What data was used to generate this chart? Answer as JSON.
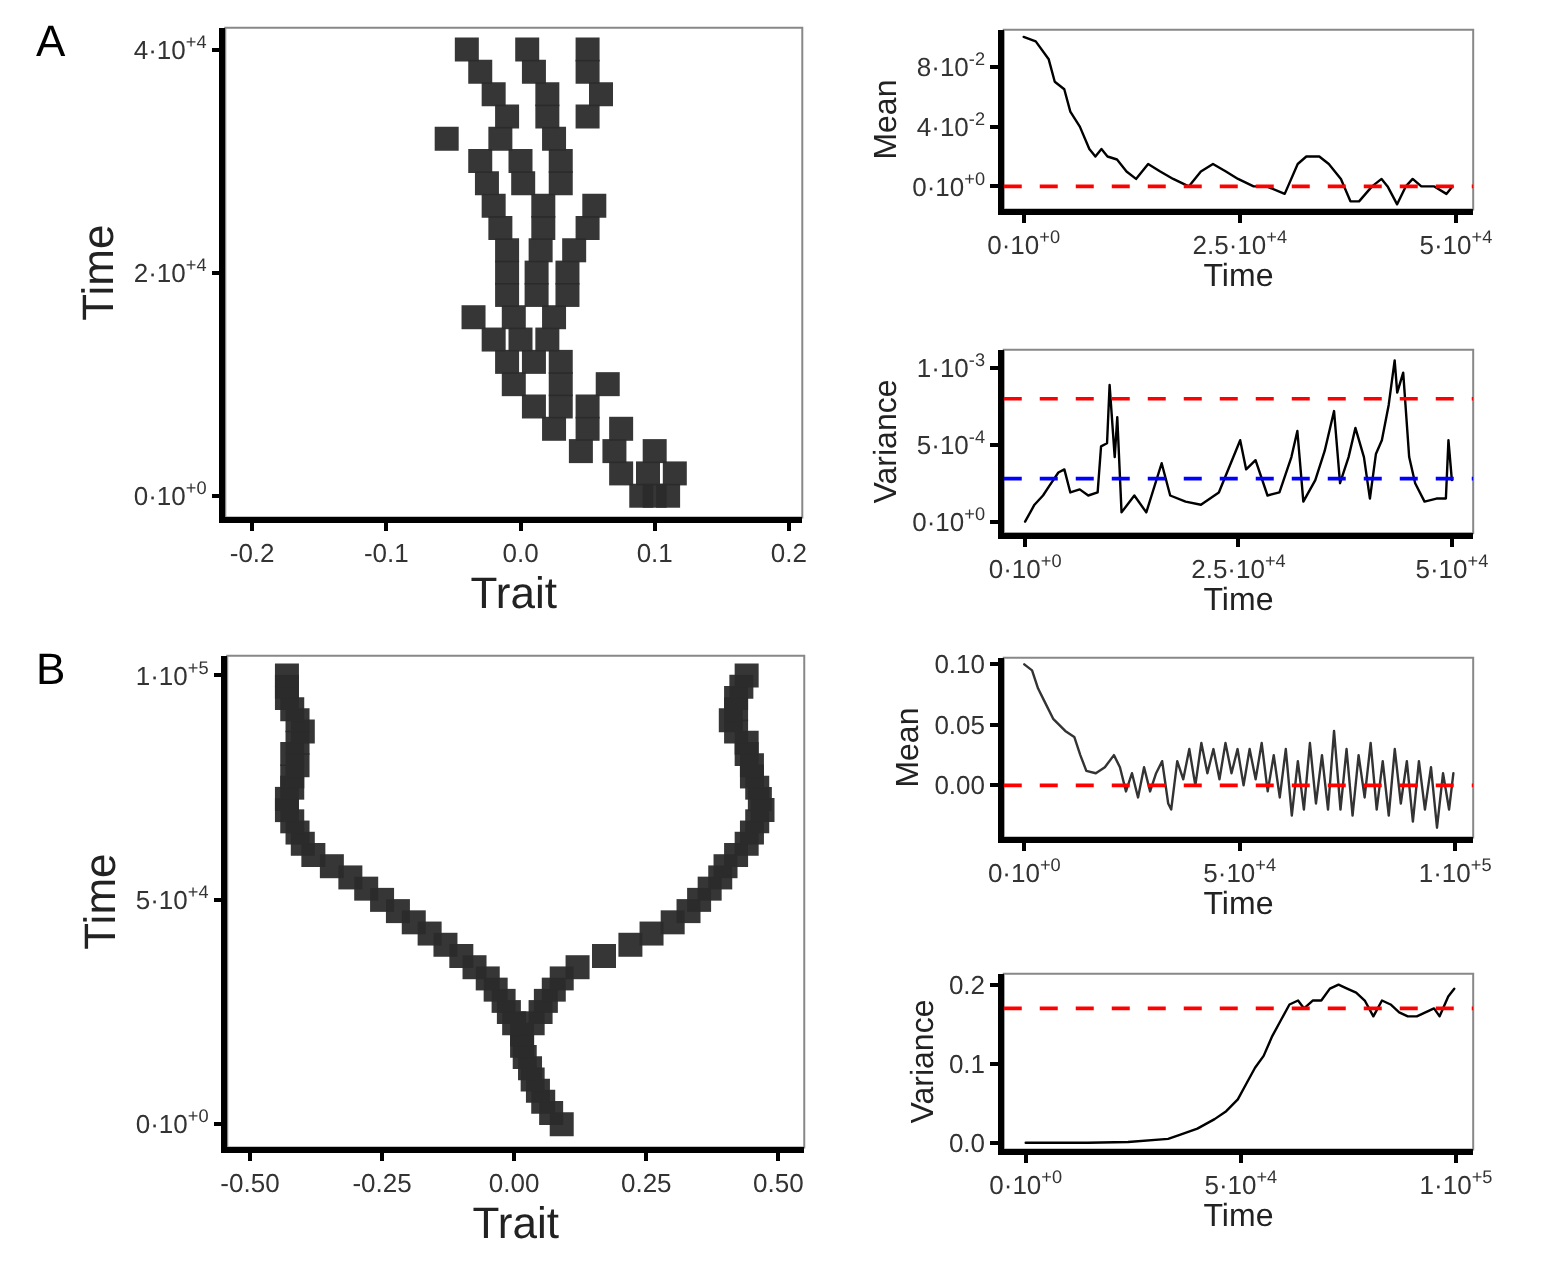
{
  "chart_data": [
    {
      "type": "scatter",
      "xlabel": "Trait",
      "ylabel": "Time",
      "annotations": [
        "A"
      ],
      "marker": "square",
      "xlim": [
        -0.22,
        0.21
      ],
      "ylim": [
        -1950,
        41950
      ],
      "xticks": [
        -0.2,
        -0.1,
        {
          "value": 0,
          "label": "0.0"
        },
        0.1,
        0.2
      ],
      "yticks": [
        {
          "value": 0,
          "label": "0·10$^{+0}$"
        },
        {
          "value": 20000,
          "label": "2·10$^{+4}$"
        },
        {
          "value": 40000,
          "label": "4·10$^{+4}$"
        }
      ],
      "series": [
        {
          "color": "#2b2b2b",
          "x": [
            0.09,
            0.1,
            0.11,
            0.075,
            0.095,
            0.115,
            0.045,
            0.07,
            0.1,
            0.025,
            0.05,
            0.075,
            0.01,
            0.03,
            0.05,
            -0.005,
            0.03,
            0.065,
            -0.01,
            0.01,
            0.03,
            -0.02,
            0,
            0.02,
            -0.035,
            -0.005,
            0.025,
            -0.01,
            0.012,
            0.035,
            -0.01,
            0.012,
            0.035,
            -0.01,
            0.015,
            0.04,
            -0.015,
            0.017,
            0.05,
            -0.02,
            0.017,
            0.055,
            -0.025,
            0.002,
            0.03,
            -0.03,
            0,
            0.03,
            -0.055,
            -0.015,
            0.025,
            -0.01,
            0.02,
            0.05,
            -0.02,
            0.02,
            0.06,
            -0.03,
            0.01,
            0.05,
            -0.04,
            0.005,
            0.05
          ],
          "values": [
            0,
            0,
            0,
            2000,
            2000,
            2000,
            4000,
            4000,
            4000,
            6000,
            6000,
            6000,
            8000,
            8000,
            8000,
            10000,
            10000,
            10000,
            12000,
            12000,
            12000,
            14000,
            14000,
            14000,
            16000,
            16000,
            16000,
            18000,
            18000,
            18000,
            20000,
            20000,
            20000,
            22000,
            22000,
            22000,
            24000,
            24000,
            24000,
            26000,
            26000,
            26000,
            28000,
            28000,
            28000,
            30000,
            30000,
            30000,
            32000,
            32000,
            32000,
            34000,
            34000,
            34000,
            36000,
            36000,
            36000,
            38000,
            38000,
            38000,
            40000,
            40000,
            40000
          ]
        }
      ]
    },
    {
      "type": "line",
      "xlabel": "Time",
      "ylabel": "Mean",
      "marker": "none",
      "line_style": "solid",
      "xlim": [
        -2300,
        52000
      ],
      "ylim": [
        -0.0154,
        0.1048
      ],
      "xticks": [
        {
          "value": 0,
          "label": "0·10$^{+0}$"
        },
        {
          "value": 25000,
          "label": "2.5·10$^{+4}$"
        },
        {
          "value": 50000,
          "label": "5·10$^{+4}$"
        }
      ],
      "yticks": [
        {
          "value": 0,
          "label": "0·10$^{+0}$"
        },
        {
          "value": 0.04,
          "label": "4·10$^{-2}$"
        },
        {
          "value": 0.08,
          "label": "8·10$^{-2}$"
        }
      ],
      "ref_lines": [
        {
          "axis": "y",
          "value": 0,
          "color": "#ff0000",
          "line_style": "dashed"
        }
      ],
      "series": [
        {
          "color": "#000000",
          "x": [
            0,
            1400,
            2900,
            3600,
            4700,
            5400,
            6500,
            7600,
            8300,
            9000,
            9700,
            10800,
            11900,
            13000,
            14400,
            15800,
            17300,
            19100,
            20500,
            21900,
            23400,
            24800,
            26600,
            28100,
            30200,
            31700,
            32700,
            34200,
            35300,
            36700,
            37800,
            38800,
            40300,
            41400,
            42100,
            43200,
            44200,
            45000,
            46000,
            47500,
            48900,
            49600
          ],
          "values": [
            0.1,
            0.097,
            0.085,
            0.07,
            0.065,
            0.05,
            0.04,
            0.025,
            0.02,
            0.025,
            0.02,
            0.018,
            0.01,
            0.005,
            0.015,
            0.01,
            0.005,
            0.0,
            0.01,
            0.015,
            0.01,
            0.005,
            0.0,
            0.0,
            -0.005,
            0.015,
            0.02,
            0.02,
            0.015,
            0.005,
            -0.01,
            -0.01,
            0.0,
            0.005,
            0.0,
            -0.012,
            0.0,
            0.005,
            0.0,
            0.0,
            -0.005,
            0.0
          ]
        }
      ]
    },
    {
      "type": "line",
      "xlabel": "Time",
      "ylabel": "Variance",
      "marker": "none",
      "line_style": "solid",
      "xlim": [
        -2500,
        52500
      ],
      "ylim": [
        -7.6e-05,
        0.00112
      ],
      "xticks": [
        {
          "value": 0,
          "label": "0·10$^{+0}$"
        },
        {
          "value": 25000,
          "label": "2.5·10$^{+4}$"
        },
        {
          "value": 50000,
          "label": "5·10$^{+4}$"
        }
      ],
      "yticks": [
        {
          "value": 0,
          "label": "0·10$^{+0}$"
        },
        {
          "value": 0.0005,
          "label": "5·10$^{-4}$"
        },
        {
          "value": 0.001,
          "label": "1·10$^{-3}$"
        }
      ],
      "ref_lines": [
        {
          "axis": "y",
          "value": 0.0008,
          "color": "#ff0000",
          "line_style": "dashed"
        },
        {
          "axis": "y",
          "value": 0.00028,
          "color": "#0000ff",
          "line_style": "dashed"
        }
      ],
      "series": [
        {
          "color": "#000000",
          "x": [
            0,
            1100,
            2100,
            2800,
            3900,
            4600,
            5300,
            6400,
            7400,
            8500,
            8900,
            9600,
            9900,
            10500,
            10800,
            11300,
            12800,
            14200,
            16000,
            17000,
            18800,
            20600,
            22700,
            24100,
            25200,
            25900,
            27000,
            28400,
            29800,
            31200,
            31900,
            32600,
            34000,
            35100,
            36200,
            36900,
            37900,
            38700,
            39700,
            40400,
            41100,
            41800,
            42600,
            43300,
            43600,
            44300,
            45000,
            45700,
            46800,
            48200,
            49300,
            49600,
            50000
          ],
          "values": [
            0,
            0.00011,
            0.00017,
            0.00023,
            0.00032,
            0.00034,
            0.00019,
            0.00021,
            0.00017,
            0.00019,
            0.00049,
            0.00051,
            0.00089,
            0.00042,
            0.00068,
            6e-05,
            0.00017,
            6e-05,
            0.00038,
            0.00017,
            0.00013,
            0.00011,
            0.00019,
            0.00038,
            0.00053,
            0.00034,
            0.0004,
            0.00017,
            0.00019,
            0.00042,
            0.00059,
            0.00013,
            0.00027,
            0.00046,
            0.00072,
            0.00025,
            0.00042,
            0.00061,
            0.00042,
            0.00015,
            0.00044,
            0.00053,
            0.00076,
            0.00105,
            0.00084,
            0.00097,
            0.00042,
            0.00025,
            0.00013,
            0.00015,
            0.00015,
            0.00053,
            0.00027
          ]
        }
      ]
    },
    {
      "type": "scatter",
      "xlabel": "Trait",
      "ylabel": "Time",
      "annotations": [
        "B"
      ],
      "marker": "square",
      "xlim": [
        -0.543,
        0.549
      ],
      "ylim": [
        -5150,
        104400
      ],
      "xticks": [
        {
          "value": -0.5,
          "label": "-0.50"
        },
        -0.25,
        {
          "value": 0,
          "label": "0.00"
        },
        0.25,
        {
          "value": 0.5,
          "label": "0.50"
        }
      ],
      "yticks": [
        {
          "value": 0,
          "label": "0·10$^{+0}$"
        },
        {
          "value": 50000,
          "label": "5·10$^{+4}$"
        },
        {
          "value": 100000,
          "label": "1·10$^{+5}$"
        }
      ],
      "series": [
        {
          "color": "#2b2b2b",
          "x": [
            0.09,
            0.07,
            0.055,
            0.045,
            0.035,
            0.03,
            0.02,
            0.015,
            0.015,
            0.0,
            -0.01,
            -0.02,
            -0.035,
            -0.05,
            -0.075,
            -0.1,
            -0.13,
            -0.16,
            -0.19,
            -0.22,
            -0.25,
            -0.28,
            -0.31,
            -0.345,
            -0.38,
            -0.4,
            -0.41,
            -0.42,
            -0.43,
            -0.43,
            -0.42,
            -0.42,
            -0.41,
            -0.42,
            -0.41,
            -0.4,
            -0.41,
            -0.42,
            -0.43,
            -0.43,
            -0.43,
            0.035,
            0.05,
            0.06,
            0.075,
            0.09,
            0.12,
            0.17,
            0.22,
            0.26,
            0.3,
            0.33,
            0.35,
            0.37,
            0.39,
            0.4,
            0.42,
            0.44,
            0.45,
            0.46,
            0.47,
            0.465,
            0.46,
            0.45,
            0.45,
            0.44,
            0.44,
            0.42,
            0.41,
            0.42,
            0.42,
            0.43,
            0.44
          ],
          "values": [
            0,
            2500,
            5000,
            7500,
            10000,
            12500,
            15000,
            17500,
            20000,
            22500,
            25000,
            27500,
            30000,
            32500,
            35000,
            37500,
            40000,
            42500,
            45000,
            47500,
            50000,
            52500,
            55000,
            57500,
            60000,
            62500,
            65000,
            67500,
            70000,
            72500,
            75000,
            77500,
            80000,
            82500,
            85000,
            87500,
            90000,
            92500,
            95000,
            97500,
            100000,
            22500,
            25000,
            27500,
            30000,
            32500,
            35000,
            37500,
            40000,
            42500,
            45000,
            47500,
            50000,
            52500,
            55000,
            57500,
            60000,
            62500,
            65000,
            67500,
            70000,
            72500,
            75000,
            77500,
            80000,
            82500,
            85000,
            87500,
            90000,
            92500,
            95000,
            97500,
            100000
          ]
        }
      ]
    },
    {
      "type": "line",
      "xlabel": "Time",
      "ylabel": "Mean",
      "marker": "none",
      "line_style": "solid",
      "xlim": [
        -4770,
        104200
      ],
      "ylim": [
        -0.043,
        0.1055
      ],
      "xticks": [
        {
          "value": 0,
          "label": "0·10$^{+0}$"
        },
        {
          "value": 50000,
          "label": "5·10$^{+4}$"
        },
        {
          "value": 100000,
          "label": "1·10$^{+5}$"
        }
      ],
      "yticks": [
        {
          "value": 0,
          "label": "0.00"
        },
        0.05,
        {
          "value": 0.1,
          "label": "0.10"
        }
      ],
      "ref_lines": [
        {
          "axis": "y",
          "value": 0,
          "color": "#ff0000",
          "line_style": "dashed"
        }
      ],
      "series": [
        {
          "color": "#333333",
          "x": [
            0,
            1800,
            3200,
            4600,
            6700,
            9500,
            11600,
            13000,
            14400,
            16600,
            18700,
            20800,
            22200,
            23600,
            25000,
            26400,
            27800,
            29200,
            30600,
            32000,
            33400,
            34100,
            35500,
            36900,
            38300,
            39700,
            41100,
            42500,
            43900,
            45300,
            46700,
            48100,
            49500,
            50900,
            52300,
            53700,
            55100,
            56500,
            57900,
            59300,
            60700,
            62100,
            63500,
            64900,
            66300,
            67700,
            69100,
            70500,
            71900,
            73400,
            74800,
            76200,
            77600,
            79000,
            80400,
            81800,
            83200,
            84600,
            86000,
            87400,
            88800,
            90200,
            91600,
            93000,
            94400,
            95800,
            97200,
            98600,
            99600
          ],
          "values": [
            0.1,
            0.095,
            0.08,
            0.07,
            0.055,
            0.045,
            0.04,
            0.025,
            0.012,
            0.01,
            0.015,
            0.025,
            0.015,
            -0.005,
            0.01,
            -0.01,
            0.015,
            -0.005,
            0.01,
            0.02,
            -0.015,
            -0.02,
            0.02,
            0.005,
            0.03,
            0.0,
            0.035,
            0.01,
            0.03,
            0.005,
            0.035,
            0.01,
            0.03,
            0.0,
            0.03,
            0.005,
            0.035,
            -0.005,
            0.025,
            -0.01,
            0.03,
            -0.025,
            0.02,
            -0.02,
            0.035,
            -0.015,
            0.025,
            -0.02,
            0.045,
            -0.02,
            0.03,
            -0.025,
            0.025,
            -0.01,
            0.035,
            -0.02,
            0.02,
            -0.025,
            0.03,
            -0.015,
            0.02,
            -0.03,
            0.02,
            -0.02,
            0.015,
            -0.035,
            0.01,
            -0.02,
            0.01
          ]
        }
      ]
    },
    {
      "type": "line",
      "xlabel": "Time",
      "ylabel": "Variance",
      "marker": "none",
      "line_style": "solid",
      "xlim": [
        -5100,
        104000
      ],
      "ylim": [
        -0.0083,
        0.214
      ],
      "xticks": [
        {
          "value": 0,
          "label": "0·10$^{+0}$"
        },
        {
          "value": 50000,
          "label": "5·10$^{+4}$"
        },
        {
          "value": 100000,
          "label": "1·10$^{+5}$"
        }
      ],
      "yticks": [
        {
          "value": 0,
          "label": "0.0"
        },
        0.1,
        0.2
      ],
      "ref_lines": [
        {
          "axis": "y",
          "value": 0.17,
          "color": "#ff0000",
          "line_style": "dashed"
        }
      ],
      "series": [
        {
          "color": "#000000",
          "x": [
            0,
            14400,
            23800,
            33100,
            35800,
            39900,
            43900,
            46600,
            49300,
            51300,
            53300,
            55300,
            57300,
            59300,
            61300,
            63300,
            64700,
            66700,
            68700,
            70700,
            72700,
            74700,
            76800,
            78800,
            80800,
            82800,
            84800,
            86800,
            88800,
            90900,
            92900,
            94900,
            96200,
            98200,
            99600
          ],
          "values": [
            0.0,
            0.0,
            0.001,
            0.005,
            0.01,
            0.018,
            0.03,
            0.04,
            0.055,
            0.075,
            0.095,
            0.11,
            0.135,
            0.155,
            0.175,
            0.18,
            0.17,
            0.18,
            0.18,
            0.195,
            0.2,
            0.195,
            0.19,
            0.18,
            0.16,
            0.18,
            0.175,
            0.165,
            0.16,
            0.16,
            0.165,
            0.17,
            0.16,
            0.185,
            0.195
          ]
        }
      ]
    }
  ]
}
